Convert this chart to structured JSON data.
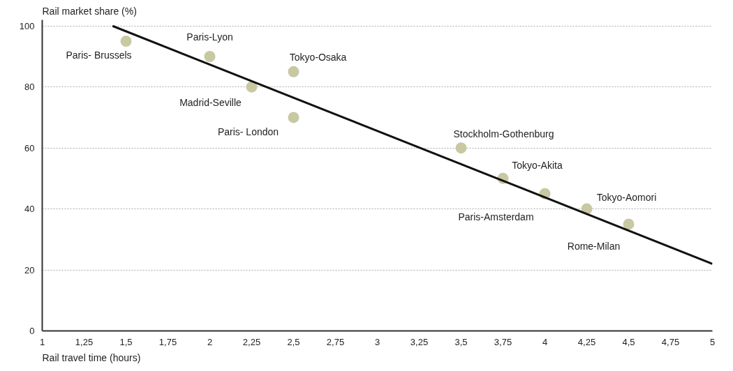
{
  "chart_data": {
    "type": "scatter",
    "xlabel": "Rail travel time (hours)",
    "ylabel": "Rail market share (%)",
    "series": [
      {
        "color": "#c8c9a2",
        "marker": "circle",
        "x": [
          1.5,
          2.0,
          2.5,
          2.25,
          2.5,
          3.5,
          3.75,
          4.0,
          4.25,
          4.5
        ],
        "values": [
          95,
          90,
          85,
          80,
          70,
          60,
          50,
          45,
          40,
          35
        ]
      },
      {
        "type": "line",
        "color": "#111111",
        "x": [
          1.42,
          5
        ],
        "values": [
          100,
          22
        ]
      }
    ],
    "annotations": [
      {
        "text": "Paris- Brussels",
        "x": 1.5,
        "y": 95
      },
      {
        "text": "Paris-Lyon",
        "x": 2.0,
        "y": 90
      },
      {
        "text": "Tokyo-Osaka",
        "x": 2.5,
        "y": 85
      },
      {
        "text": "Madrid-Seville",
        "x": 2.25,
        "y": 80
      },
      {
        "text": "Paris- London",
        "x": 2.5,
        "y": 70
      },
      {
        "text": "Stockholm-Gothenburg",
        "x": 3.5,
        "y": 60
      },
      {
        "text": "Tokyo-Akita",
        "x": 3.75,
        "y": 50
      },
      {
        "text": "Paris-Amsterdam",
        "x": 4.0,
        "y": 45
      },
      {
        "text": "Tokyo-Aomori",
        "x": 4.25,
        "y": 40
      },
      {
        "text": "Rome-Milan",
        "x": 4.5,
        "y": 35
      }
    ],
    "xlim": [
      1,
      5
    ],
    "ylim": [
      0,
      102
    ],
    "xticks": [
      1,
      {
        "value": 1.25,
        "label": "1,25"
      },
      {
        "value": 1.5,
        "label": "1,5"
      },
      {
        "value": 1.75,
        "label": "1,75"
      },
      2,
      {
        "value": 2.25,
        "label": "2,25"
      },
      {
        "value": 2.5,
        "label": "2,5"
      },
      {
        "value": 2.75,
        "label": "2,75"
      },
      3,
      {
        "value": 3.25,
        "label": "3,25"
      },
      {
        "value": 3.5,
        "label": "3,5"
      },
      {
        "value": 3.75,
        "label": "3,75"
      },
      4,
      {
        "value": 4.25,
        "label": "4,25"
      },
      {
        "value": 4.5,
        "label": "4,5"
      },
      {
        "value": 4.75,
        "label": "4,75"
      },
      5
    ],
    "yticks": [
      0,
      20,
      40,
      60,
      80,
      100
    ],
    "grid": "y"
  }
}
